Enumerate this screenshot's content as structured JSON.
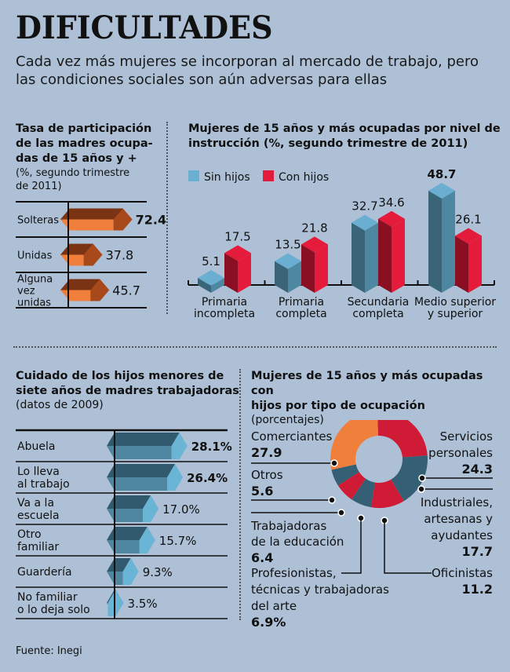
{
  "header": {
    "title": "DIFICULTADES",
    "subtitle": "Cada vez más mujeres se incorporan al mercado de trabajo, pero las condiciones sociales son aún adversas para ellas"
  },
  "colors": {
    "background": "#adc0d6",
    "orange": "#f07f3c",
    "orange_dark": "#7a3414",
    "orange_side": "#a8491c",
    "sin_hijos": "#6aaed2",
    "sin_hijos_dark": "#3a6478",
    "con_hijos": "#e51b3b",
    "con_hijos_dark": "#8a0f22",
    "teal_dark": "#325a6e",
    "teal_mid": "#4f86a0",
    "teal_light": "#6ab4d6",
    "donut_red": "#cf1b35",
    "donut_teal": "#355f75"
  },
  "source": "Fuente: Inegi",
  "chart_data": [
    {
      "type": "bar",
      "orientation": "horizontal",
      "title": "Tasa de participación de las madres ocupadas de 15 años y +",
      "subtitle": "(%, segundo trimestre de 2011)",
      "title_lines": [
        "Tasa de participación",
        "de las madres ocupa-",
        "das de 15 años y +"
      ],
      "subtitle_lines": [
        "(%, segundo trimestre",
        "de 2011)"
      ],
      "categories": [
        "Solteras",
        "Unidas",
        "Alguna vez unidas"
      ],
      "category_lines": [
        [
          "Solteras"
        ],
        [
          "Unidas"
        ],
        [
          "Alguna",
          "vez",
          "unidas"
        ]
      ],
      "values": [
        72.4,
        37.8,
        45.7
      ],
      "value_labels": [
        "72.4",
        "37.8",
        "45.7"
      ]
    },
    {
      "type": "bar",
      "title": "Mujeres de 15 años y más ocupadas por nivel de instrucción",
      "subtitle": "(%, segundo trimestre de 2011)",
      "title_lines": [
        "Mujeres de 15 años y más ocupadas por nivel de",
        "instrucción (%, segundo trimestre de 2011)"
      ],
      "categories": [
        "Primaria incompleta",
        "Primaria completa",
        "Secundaria completa",
        "Medio superior y superior"
      ],
      "category_lines": [
        [
          "Primaria",
          "incompleta"
        ],
        [
          "Primaria",
          "completa"
        ],
        [
          "Secundaria",
          "completa"
        ],
        [
          "Medio superior",
          "y superior"
        ]
      ],
      "legend": "top-left",
      "series": [
        {
          "name": "Sin hijos",
          "values": [
            5.1,
            13.5,
            32.7,
            48.7
          ],
          "labels": [
            "5.1",
            "13.5",
            "32.7",
            "48.7"
          ]
        },
        {
          "name": "Con hijos",
          "values": [
            17.5,
            21.8,
            34.6,
            26.1
          ],
          "labels": [
            "17.5",
            "21.8",
            "34.6",
            "26.1"
          ]
        }
      ]
    },
    {
      "type": "bar",
      "orientation": "horizontal",
      "title": "Cuidado de los hijos menores de siete años de madres trabajadoras",
      "subtitle": "(datos de 2009)",
      "title_lines": [
        "Cuidado de los hijos menores de",
        "siete años de madres trabajadoras"
      ],
      "subtitle_lines": [
        "(datos de 2009)"
      ],
      "categories": [
        "Abuela",
        "Lo lleva al trabajo",
        "Va a la escuela",
        "Otro familiar",
        "Guardería",
        "No familiar o lo deja solo"
      ],
      "category_lines": [
        [
          "Abuela"
        ],
        [
          "Lo lleva",
          "al trabajo"
        ],
        [
          "Va a la",
          "escuela"
        ],
        [
          "Otro",
          "familiar"
        ],
        [
          "Guardería"
        ],
        [
          "No familiar",
          "o lo deja solo"
        ]
      ],
      "values": [
        28.1,
        26.4,
        17.0,
        15.7,
        9.3,
        3.5
      ],
      "value_labels": [
        "28.1%",
        "26.4%",
        "17.0%",
        "15.7%",
        "9.3%",
        "3.5%"
      ]
    },
    {
      "type": "pie",
      "style": "donut",
      "title": "Mujeres de 15 años y más ocupadas con hijos por tipo de ocupación",
      "subtitle": "(porcentajes)",
      "title_lines": [
        "Mujeres de 15 años y más ocupadas con",
        "hijos por tipo de ocupación"
      ],
      "subtitle_lines": [
        "(porcentajes)"
      ],
      "slices": [
        {
          "label": "Servicios personales",
          "label_lines": [
            "Servicios",
            "personales"
          ],
          "value": 24.3,
          "value_label": "24.3",
          "color": "red"
        },
        {
          "label": "Industriales, artesanas y ayudantes",
          "label_lines": [
            "Industriales,",
            "artesanas y",
            "ayudantes"
          ],
          "value": 17.7,
          "value_label": "17.7",
          "color": "teal"
        },
        {
          "label": "Oficinistas",
          "label_lines": [
            "Oficinistas"
          ],
          "value": 11.2,
          "value_label": "11.2",
          "color": "red"
        },
        {
          "label": "Profesionistas, técnicas y trabajadoras del arte",
          "label_lines": [
            "Profesionistas,",
            "técnicas y trabajadoras",
            "del arte"
          ],
          "value": 6.9,
          "value_label": "6.9%",
          "color": "teal"
        },
        {
          "label": "Trabajadoras de la educación",
          "label_lines": [
            "Trabajadoras",
            "de la educación"
          ],
          "value": 6.4,
          "value_label": "6.4",
          "color": "red"
        },
        {
          "label": "Otros",
          "label_lines": [
            "Otros"
          ],
          "value": 5.6,
          "value_label": "5.6",
          "color": "teal"
        },
        {
          "label": "Comerciantes",
          "label_lines": [
            "Comerciantes"
          ],
          "value": 27.9,
          "value_label": "27.9",
          "color": "orange"
        }
      ]
    }
  ]
}
